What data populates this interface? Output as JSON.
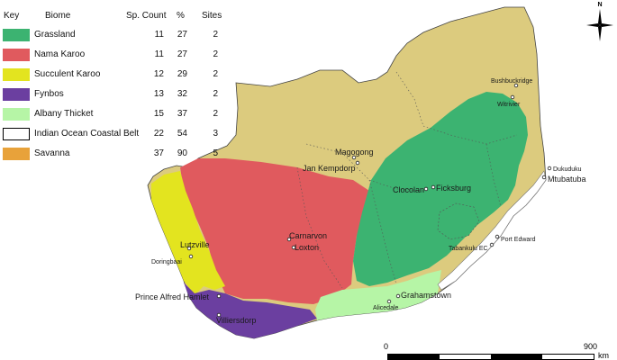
{
  "legend": {
    "headers": {
      "key": "Key",
      "biome": "Biome",
      "count": "Sp. Count",
      "pct": "%",
      "sites": "Sites"
    },
    "rows": [
      {
        "biome": "Grassland",
        "count": "11",
        "pct": "27",
        "sites": "2",
        "color": "#3cb371"
      },
      {
        "biome": "Nama Karoo",
        "count": "11",
        "pct": "27",
        "sites": "2",
        "color": "#e05a5e"
      },
      {
        "biome": "Succulent Karoo",
        "count": "12",
        "pct": "29",
        "sites": "2",
        "color": "#e3e41f"
      },
      {
        "biome": "Fynbos",
        "count": "13",
        "pct": "32",
        "sites": "2",
        "color": "#6b3fa0"
      },
      {
        "biome": "Albany Thicket",
        "count": "15",
        "pct": "37",
        "sites": "2",
        "color": "#b6f5a6"
      },
      {
        "biome": "Indian Ocean Coastal Belt",
        "count": "22",
        "pct": "54",
        "sites": "3",
        "color": "#ffffff"
      },
      {
        "biome": "Savanna",
        "count": "37",
        "pct": "90",
        "sites": "5",
        "color": "#e8a23a"
      }
    ]
  },
  "map": {
    "land_color": "#dccb7e",
    "places": [
      {
        "name": "Bushbuckridge"
      },
      {
        "name": "Witrivier"
      },
      {
        "name": "Magogong"
      },
      {
        "name": "Jan Kempdorp"
      },
      {
        "name": "Dukuduku"
      },
      {
        "name": "Mtubatuba"
      },
      {
        "name": "Clocolan"
      },
      {
        "name": "Ficksburg"
      },
      {
        "name": "Carnarvon"
      },
      {
        "name": "Loxton"
      },
      {
        "name": "Port Edward"
      },
      {
        "name": "Tabankulu EC"
      },
      {
        "name": "Lutzville"
      },
      {
        "name": "Doringbaai"
      },
      {
        "name": "Grahamstown"
      },
      {
        "name": "Alicedale"
      },
      {
        "name": "Prince Alfred Hamlet"
      },
      {
        "name": "Villiersdorp"
      }
    ]
  },
  "north_arrow": {
    "label": "N"
  },
  "scale_bar": {
    "start": "0",
    "end": "900",
    "unit": "km"
  }
}
